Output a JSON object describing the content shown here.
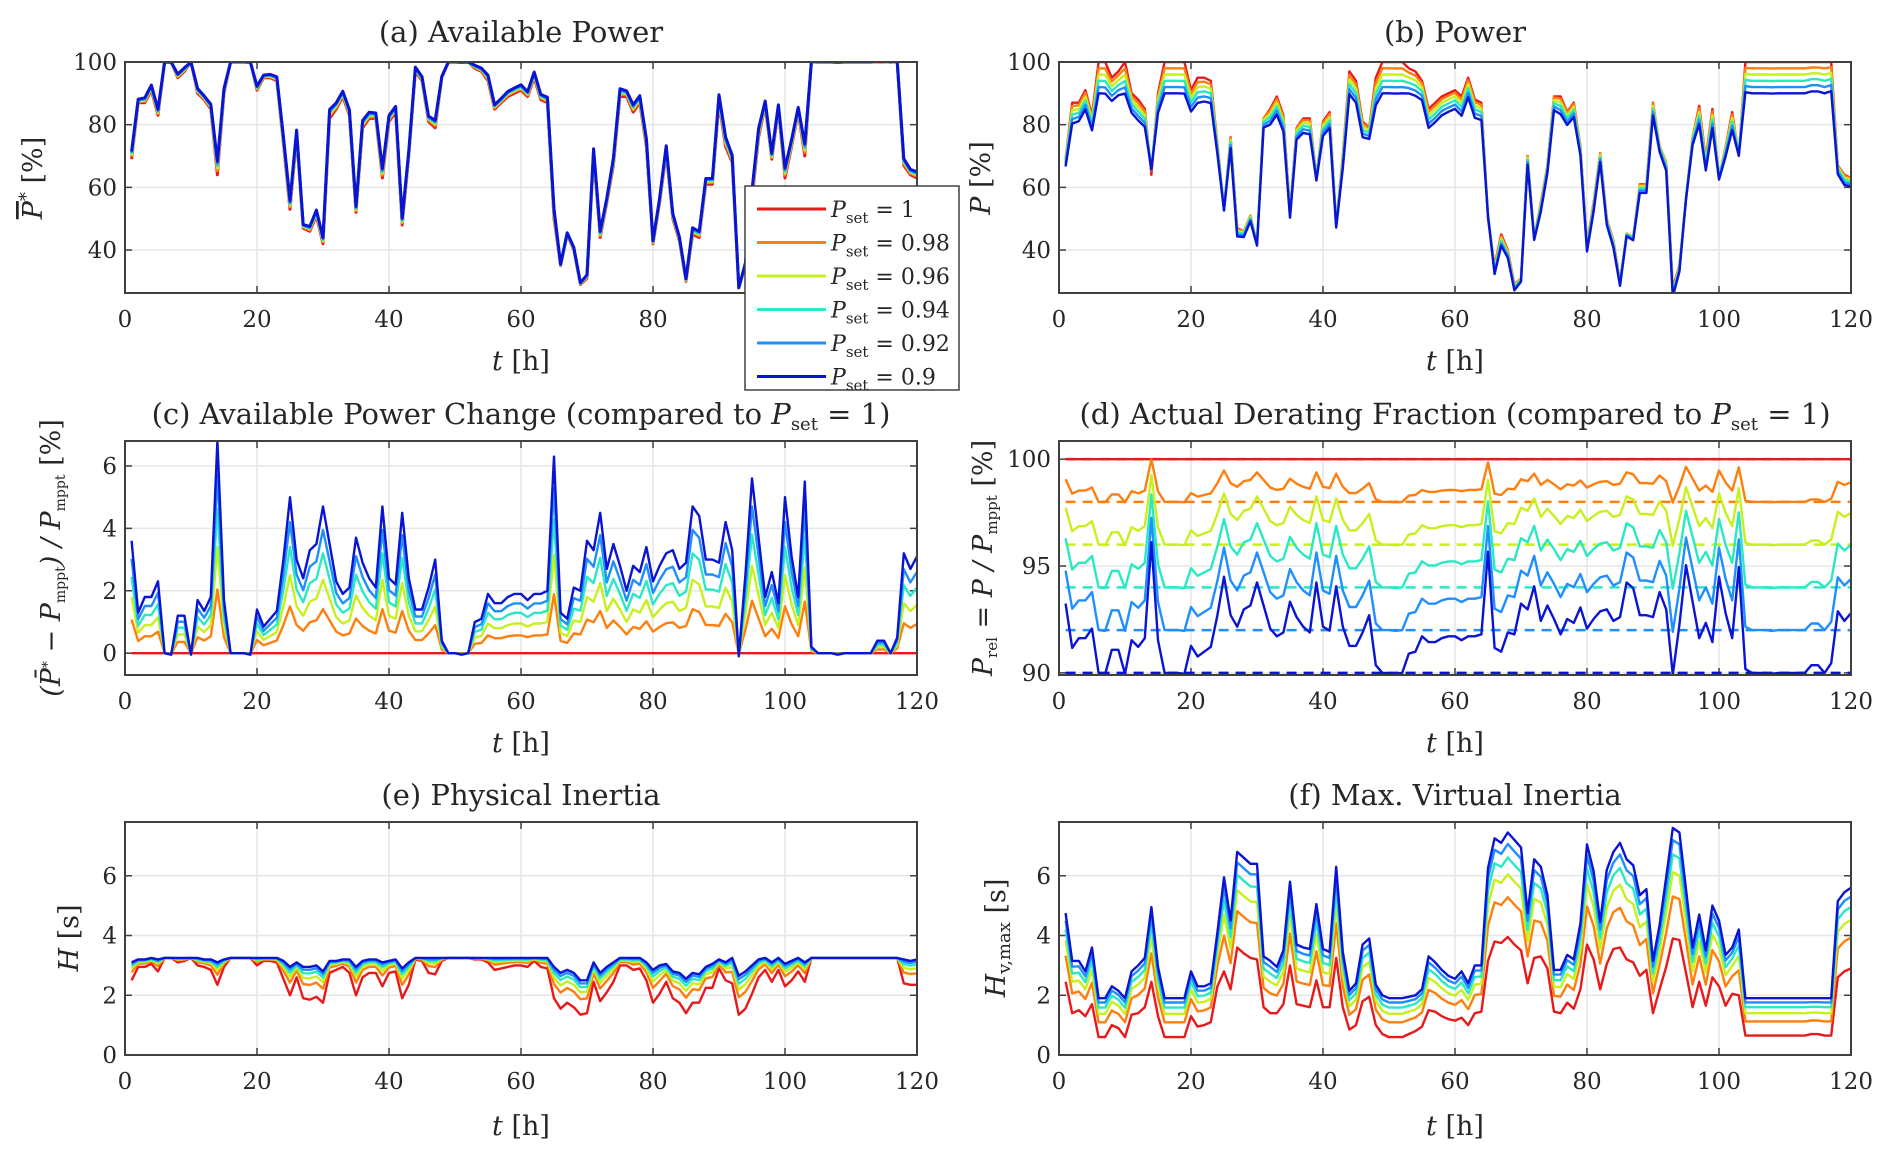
{
  "figure": {
    "legend": {
      "placement": "inside panel (a) bottom-right, overlapping",
      "entries": [
        "P_set = 1",
        "P_set = 0.98",
        "P_set = 0.96",
        "P_set = 0.94",
        "P_set = 0.92",
        "P_set = 0.9"
      ]
    }
  },
  "chart_data": {
    "type": "line",
    "x_name": "t [h]",
    "t_start": 1,
    "t_end": 120,
    "t_step": 1,
    "series_meta": [
      {
        "name": "P_set = 1",
        "pset": 1.0,
        "color": "#e8191b"
      },
      {
        "name": "P_set = 0.98",
        "pset": 0.98,
        "color": "#ff7f0e"
      },
      {
        "name": "P_set = 0.96",
        "pset": 0.96,
        "color": "#c6f01e"
      },
      {
        "name": "P_set = 0.94",
        "pset": 0.94,
        "color": "#2ae8c4"
      },
      {
        "name": "P_set = 0.92",
        "pset": 0.92,
        "color": "#1f8fff"
      },
      {
        "name": "P_set = 0.9",
        "pset": 0.9,
        "color": "#0a14d2"
      }
    ],
    "available_power_base_pset1": [
      69,
      87,
      87,
      91,
      83,
      100,
      100,
      95,
      97,
      100,
      90,
      88,
      85,
      64,
      90,
      100,
      100,
      100,
      100,
      91,
      95,
      95,
      94,
      74,
      53,
      76,
      47,
      46,
      51,
      42,
      82,
      85,
      89,
      83,
      52,
      79,
      82,
      82,
      63,
      81,
      84,
      48,
      70,
      97,
      94,
      81,
      79,
      95,
      100,
      100,
      100,
      100,
      98,
      97,
      94,
      85,
      87,
      89,
      90,
      91,
      89,
      95,
      88,
      87,
      50,
      35,
      45,
      40,
      29,
      31,
      70,
      44,
      55,
      67,
      89,
      89,
      84,
      87,
      73,
      42,
      55,
      71,
      50,
      43,
      30,
      45,
      44,
      61,
      61,
      87,
      73,
      68,
      28,
      35,
      56,
      76,
      86,
      69,
      85,
      63,
      73,
      84,
      70,
      100,
      100,
      100,
      100,
      100,
      100,
      100,
      100,
      100,
      100,
      100,
      100,
      100,
      100,
      67,
      64,
      63
    ],
    "available_change_pset09": [
      3.6,
      1.3,
      1.8,
      1.8,
      2.3,
      0,
      -0.05,
      1.2,
      1.2,
      -0.05,
      1.7,
      1.35,
      1.8,
      6.8,
      1.7,
      0,
      0,
      0,
      -0.05,
      1.4,
      0.85,
      1.1,
      1.35,
      3.0,
      5.0,
      3.0,
      2.4,
      3.3,
      3.5,
      4.7,
      3.5,
      2.3,
      1.9,
      2.1,
      3.7,
      2.9,
      2.4,
      2.1,
      4.7,
      2.4,
      2.2,
      4.5,
      2.4,
      1.4,
      1.4,
      2.1,
      3.0,
      0.4,
      0,
      0,
      -0.05,
      0,
      1.0,
      1.1,
      1.9,
      1.6,
      1.6,
      1.8,
      1.9,
      1.9,
      1.7,
      1.9,
      1.9,
      2.0,
      6.3,
      1.3,
      1.1,
      2.1,
      2.0,
      3.6,
      3.3,
      4.5,
      2.7,
      3.5,
      2.8,
      2.0,
      2.8,
      2.6,
      3.4,
      2.3,
      2.8,
      3.2,
      3.3,
      2.7,
      2.9,
      4.7,
      4.4,
      3.0,
      3.0,
      2.9,
      4.2,
      3.3,
      -0.1,
      2.5,
      5.6,
      3.7,
      1.8,
      2.6,
      1.6,
      5.0,
      3.1,
      1.8,
      5.5,
      0.2,
      0,
      0,
      0,
      -0.05,
      0,
      0,
      0,
      0,
      0,
      0.4,
      0.4,
      0,
      0.5,
      3.2,
      2.7,
      3.1
    ],
    "change_weights": [
      0,
      0.3,
      0.5,
      0.68,
      0.84,
      1
    ],
    "inertia_pset1": [
      2.5,
      2.95,
      2.95,
      3.05,
      2.8,
      3.25,
      3.25,
      3.1,
      3.15,
      3.25,
      3.0,
      2.95,
      2.85,
      2.35,
      2.95,
      3.25,
      3.25,
      3.25,
      3.25,
      3.0,
      3.15,
      3.15,
      3.1,
      2.55,
      2.0,
      2.6,
      1.9,
      1.85,
      1.95,
      1.75,
      2.75,
      2.85,
      2.95,
      2.75,
      2.0,
      2.6,
      2.75,
      2.75,
      2.3,
      2.75,
      2.8,
      1.9,
      2.35,
      3.2,
      3.15,
      2.75,
      2.7,
      3.15,
      3.25,
      3.25,
      3.25,
      3.25,
      3.2,
      3.2,
      3.1,
      2.85,
      2.9,
      2.95,
      3.0,
      3.0,
      2.95,
      3.15,
      2.95,
      2.9,
      1.9,
      1.55,
      1.75,
      1.6,
      1.35,
      1.4,
      2.45,
      1.8,
      2.1,
      2.45,
      3.0,
      3.0,
      2.85,
      2.9,
      2.5,
      1.75,
      2.05,
      2.45,
      1.9,
      1.75,
      1.4,
      1.75,
      1.75,
      2.25,
      2.25,
      2.9,
      2.5,
      2.4,
      1.35,
      1.55,
      2.05,
      2.6,
      2.85,
      2.45,
      2.85,
      2.3,
      2.5,
      2.8,
      2.45,
      3.25,
      3.25,
      3.25,
      3.25,
      3.25,
      3.25,
      3.25,
      3.25,
      3.25,
      3.25,
      3.25,
      3.25,
      3.25,
      3.25,
      2.4,
      2.35,
      2.35
    ],
    "inertia_pset09": [
      3.1,
      3.2,
      3.2,
      3.25,
      3.2,
      3.25,
      3.25,
      3.25,
      3.25,
      3.25,
      3.25,
      3.2,
      3.2,
      3.1,
      3.2,
      3.25,
      3.25,
      3.25,
      3.25,
      3.25,
      3.25,
      3.25,
      3.25,
      3.15,
      2.95,
      3.1,
      2.95,
      2.95,
      3.0,
      2.8,
      3.15,
      3.15,
      3.2,
      3.2,
      2.95,
      3.15,
      3.2,
      3.2,
      3.1,
      3.15,
      3.2,
      2.9,
      3.1,
      3.25,
      3.25,
      3.25,
      3.25,
      3.25,
      3.25,
      3.25,
      3.25,
      3.25,
      3.25,
      3.25,
      3.25,
      3.25,
      3.25,
      3.25,
      3.25,
      3.25,
      3.25,
      3.25,
      3.25,
      3.25,
      2.95,
      2.75,
      2.85,
      2.75,
      2.5,
      2.5,
      3.1,
      2.75,
      2.95,
      3.1,
      3.25,
      3.25,
      3.25,
      3.25,
      3.1,
      2.85,
      3.0,
      3.05,
      2.8,
      2.75,
      2.55,
      2.75,
      2.7,
      2.95,
      3.05,
      3.2,
      3.1,
      3.25,
      2.65,
      2.8,
      3.0,
      3.2,
      3.25,
      3.1,
      3.25,
      3.05,
      3.15,
      3.25,
      3.1,
      3.25,
      3.25,
      3.25,
      3.25,
      3.25,
      3.25,
      3.25,
      3.25,
      3.25,
      3.25,
      3.25,
      3.25,
      3.25,
      3.25,
      3.2,
      3.15,
      3.2
    ],
    "inertia_weights": [
      0,
      0.45,
      0.65,
      0.8,
      0.91,
      1
    ],
    "virtual_inertia_pset1": [
      2.45,
      1.4,
      1.5,
      1.3,
      1.7,
      0.6,
      0.6,
      1.0,
      0.9,
      0.6,
      1.35,
      1.4,
      1.6,
      2.45,
      1.3,
      0.6,
      0.6,
      0.6,
      0.6,
      1.3,
      0.95,
      1.0,
      1.1,
      2.3,
      2.8,
      2.2,
      3.6,
      3.4,
      3.25,
      3.2,
      1.6,
      1.4,
      1.4,
      1.7,
      3.0,
      1.7,
      1.65,
      1.6,
      2.5,
      1.6,
      1.6,
      3.25,
      1.6,
      0.85,
      1.0,
      1.8,
      1.95,
      1.0,
      0.7,
      0.6,
      0.6,
      0.6,
      0.7,
      0.8,
      0.95,
      1.5,
      1.45,
      1.3,
      1.2,
      1.15,
      1.25,
      1.0,
      1.4,
      1.45,
      3.15,
      3.8,
      3.75,
      3.95,
      3.7,
      3.5,
      2.4,
      3.25,
      3.3,
      2.9,
      1.45,
      1.4,
      1.75,
      1.55,
      2.2,
      3.7,
      3.2,
      2.2,
      3.05,
      3.55,
      3.6,
      3.2,
      3.1,
      2.65,
      2.85,
      1.4,
      2.2,
      2.95,
      3.9,
      3.85,
      2.75,
      1.6,
      2.45,
      1.65,
      2.6,
      2.3,
      1.65,
      2.05,
      2.0,
      0.65,
      0.65,
      0.65,
      0.65,
      0.65,
      0.65,
      0.65,
      0.65,
      0.65,
      0.65,
      0.7,
      0.7,
      0.65,
      0.65,
      2.6,
      2.8,
      2.9
    ],
    "virtual_inertia_pset09": [
      4.75,
      3.15,
      3.15,
      2.8,
      3.6,
      1.9,
      1.9,
      2.3,
      2.15,
      1.9,
      2.8,
      3.0,
      3.25,
      4.95,
      2.95,
      1.9,
      1.9,
      1.9,
      1.9,
      2.8,
      2.3,
      2.3,
      2.4,
      4.1,
      5.95,
      4.5,
      6.8,
      6.6,
      6.4,
      6.4,
      3.3,
      3.15,
      2.95,
      3.5,
      5.8,
      3.7,
      3.6,
      3.55,
      5.05,
      3.55,
      3.45,
      6.3,
      3.45,
      2.15,
      2.4,
      3.7,
      3.9,
      2.35,
      2.0,
      1.9,
      1.9,
      1.9,
      1.95,
      2.0,
      2.2,
      3.3,
      3.1,
      2.85,
      2.65,
      2.55,
      2.8,
      2.4,
      3.0,
      3.0,
      6.25,
      7.25,
      7.1,
      7.45,
      7.2,
      6.95,
      4.75,
      6.55,
      6.3,
      5.35,
      2.85,
      2.85,
      3.35,
      3.2,
      4.4,
      7.05,
      6.15,
      4.45,
      6.2,
      6.8,
      7.1,
      6.55,
      6.35,
      5.35,
      5.55,
      3.15,
      4.35,
      5.95,
      7.6,
      7.45,
      5.55,
      3.6,
      4.7,
      3.5,
      5.0,
      4.5,
      3.35,
      3.6,
      4.2,
      1.9,
      1.9,
      1.9,
      1.9,
      1.9,
      1.9,
      1.9,
      1.9,
      1.9,
      1.9,
      1.9,
      1.9,
      1.9,
      1.9,
      5.15,
      5.45,
      5.6
    ],
    "virtual_inertia_weights": [
      0,
      0.38,
      0.6,
      0.76,
      0.89,
      1
    ],
    "panels": [
      {
        "id": "a",
        "title": "(a) Available Power",
        "ylabel": "P̄* [%]",
        "xlabel": "t [h]",
        "ylim": [
          26.3,
          100
        ],
        "yticks": [
          40,
          60,
          80,
          100
        ],
        "xticks": [
          0,
          20,
          40,
          60,
          80,
          100
        ],
        "grid": true
      },
      {
        "id": "b",
        "title": "(b) Power",
        "ylabel": "P [%]",
        "xlabel": "t [h]",
        "ylim": [
          26.3,
          100
        ],
        "yticks": [
          40,
          60,
          80,
          100
        ],
        "xticks": [
          0,
          20,
          40,
          60,
          80,
          100,
          120
        ],
        "grid": true
      },
      {
        "id": "c",
        "title": "(c) Available Power Change (compared to P_set = 1)",
        "ylabel": "(P̄* − P_mppt) / P_mppt [%]",
        "xlabel": "t [h]",
        "ylim": [
          -0.7,
          6.8
        ],
        "yticks": [
          0,
          2,
          4,
          6
        ],
        "xticks": [
          0,
          20,
          40,
          60,
          80,
          100,
          120
        ],
        "grid": true
      },
      {
        "id": "d",
        "title": "(d) Actual Derating Fraction (compared to P_set = 1)",
        "ylabel": "P_rel = P / P_mppt [%]",
        "xlabel": "t [h]",
        "ylim": [
          89.9,
          100.85
        ],
        "yticks": [
          90,
          95,
          100
        ],
        "xticks": [
          0,
          20,
          40,
          60,
          80,
          100,
          120
        ],
        "grid": true,
        "reference_lines": "dashed at P_set × 100"
      },
      {
        "id": "e",
        "title": "(e) Physical Inertia",
        "ylabel": "H [s]",
        "xlabel": "t [h]",
        "ylim": [
          0,
          7.8
        ],
        "yticks": [
          0,
          2,
          4,
          6
        ],
        "xticks": [
          0,
          20,
          40,
          60,
          80,
          100,
          120
        ],
        "grid": true
      },
      {
        "id": "f",
        "title": "(f) Max. Virtual Inertia",
        "ylabel": "H_v,max [s]",
        "xlabel": "t [h]",
        "ylim": [
          0,
          7.8
        ],
        "yticks": [
          0,
          2,
          4,
          6
        ],
        "xticks": [
          0,
          20,
          40,
          60,
          80,
          100,
          120
        ],
        "grid": true
      }
    ]
  }
}
